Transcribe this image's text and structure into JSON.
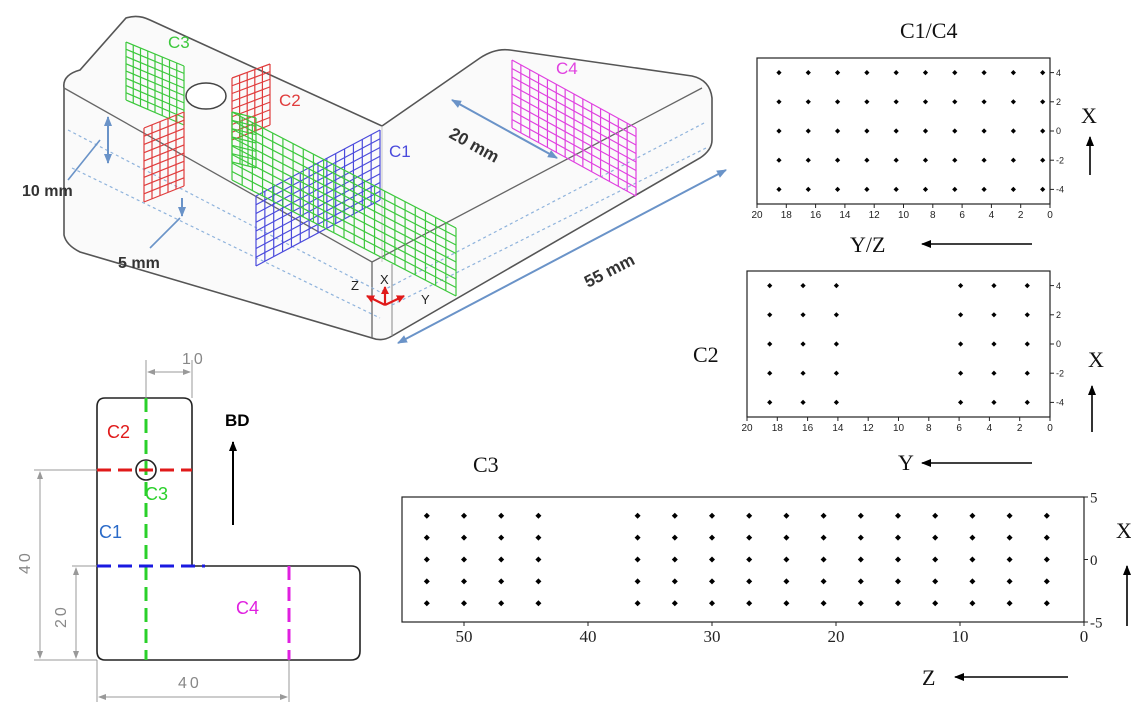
{
  "iso": {
    "labels": {
      "c1": "C1",
      "c2": "C2",
      "c3": "C3",
      "c4": "C4"
    },
    "dims": {
      "d20": "20 mm",
      "d55": "55 mm",
      "d10": "10 mm",
      "d5": "5 mm"
    },
    "axes": {
      "x": "X",
      "y": "Y",
      "z": "Z"
    },
    "colors": {
      "c1": "#4a4adc",
      "c2": "#e03c3c",
      "c3": "#3cc83c",
      "c4": "#e040e0",
      "dim": "#6a93c8"
    }
  },
  "plan": {
    "labels": {
      "c1": "C1",
      "c2": "C2",
      "c3": "C3",
      "c4": "C4",
      "bd": "BD"
    },
    "dims": {
      "d10": "10",
      "d40_v": "40",
      "d20": "20",
      "d40_h": "40"
    },
    "colors": {
      "c1": "#1a1ae0",
      "c2": "#e01a1a",
      "c3": "#2ad02a",
      "c4": "#e020e0",
      "c1_label": "#2a6ac8"
    }
  },
  "grids": {
    "c1c4": {
      "title": "C1/C4",
      "x_ticks": [
        "20",
        "18",
        "16",
        "14",
        "12",
        "10",
        "8",
        "6",
        "4",
        "2",
        "0"
      ],
      "y_ticks": [
        "4",
        "2",
        "0",
        "-2",
        "-4"
      ],
      "axis_label": "Y/Z",
      "side_label": "X",
      "x_range": [
        20,
        0
      ],
      "y_range": [
        -5,
        5
      ],
      "point_x": [
        18.5,
        16.5,
        14.5,
        12.5,
        10.5,
        8.5,
        6.5,
        4.5,
        2.5,
        0.5
      ],
      "point_y": [
        4,
        2,
        0,
        -2,
        -4
      ]
    },
    "c2": {
      "title": "C2",
      "x_ticks": [
        "20",
        "18",
        "16",
        "14",
        "12",
        "10",
        "8",
        "6",
        "4",
        "2",
        "0"
      ],
      "y_ticks": [
        "4",
        "2",
        "0",
        "-2",
        "-4"
      ],
      "axis_label": "Y",
      "side_label": "X",
      "x_range": [
        20,
        0
      ],
      "y_range": [
        -5,
        5
      ],
      "point_x": [
        18.5,
        16.3,
        14.1,
        5.9,
        3.7,
        1.5
      ],
      "point_y": [
        4,
        2,
        0,
        -2,
        -4
      ]
    },
    "c3": {
      "title": "C3",
      "x_ticks": [
        "50",
        "40",
        "30",
        "20",
        "10",
        "0"
      ],
      "y_ticks": [
        "5",
        "0",
        "-5"
      ],
      "axis_label": "Z",
      "side_label": "X",
      "x_range": [
        55,
        0
      ],
      "y_range": [
        -5,
        5
      ],
      "point_x": [
        53,
        50,
        47,
        44,
        36,
        33,
        30,
        27,
        24,
        21,
        18,
        15,
        12,
        9,
        6,
        3
      ],
      "point_y": [
        3.5,
        1.75,
        0,
        -1.75,
        -3.5
      ]
    }
  }
}
